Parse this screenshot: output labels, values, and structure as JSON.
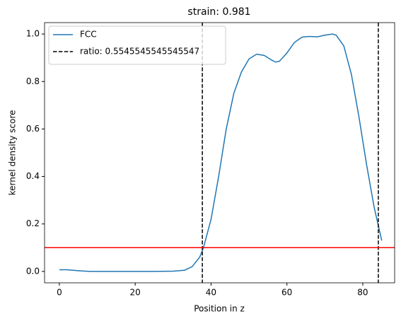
{
  "chart_data": {
    "type": "line",
    "title": "strain: 0.981",
    "xlabel": "Position in z",
    "ylabel": "kernel density score",
    "xlim": [
      -3.9,
      88.4
    ],
    "ylim": [
      -0.048,
      1.048
    ],
    "xticks": [
      0,
      20,
      40,
      60,
      80
    ],
    "yticks": [
      {
        "value": 0,
        "label": "0.0"
      },
      0.2,
      0.4,
      0.6,
      0.8,
      {
        "value": 1,
        "label": "1.0"
      }
    ],
    "legend": "upper left",
    "series": [
      {
        "name": "FCC",
        "color": "#1f77b4",
        "x": [
          0,
          2,
          5,
          8,
          12,
          16,
          20,
          25,
          30,
          33,
          35,
          37,
          38,
          40,
          42,
          44,
          46,
          48,
          50,
          52,
          54,
          56,
          57,
          58,
          60,
          62,
          64,
          66,
          68,
          70,
          72,
          73,
          75,
          77,
          79,
          81,
          83,
          85
        ],
        "values": [
          0.007,
          0.007,
          0.003,
          0.0,
          0.0,
          0.0,
          0.0,
          0.0,
          0.001,
          0.005,
          0.02,
          0.06,
          0.1,
          0.22,
          0.4,
          0.6,
          0.75,
          0.84,
          0.895,
          0.915,
          0.91,
          0.89,
          0.882,
          0.885,
          0.92,
          0.965,
          0.987,
          0.99,
          0.988,
          0.995,
          1.0,
          0.995,
          0.95,
          0.83,
          0.65,
          0.45,
          0.27,
          0.13
        ]
      }
    ],
    "vlines": {
      "name": "ratio: 0.5545545545545547",
      "color": "#000000",
      "x": [
        37.7,
        84.1
      ]
    },
    "hline": {
      "value": 0.1,
      "color": "#ff0000"
    }
  }
}
